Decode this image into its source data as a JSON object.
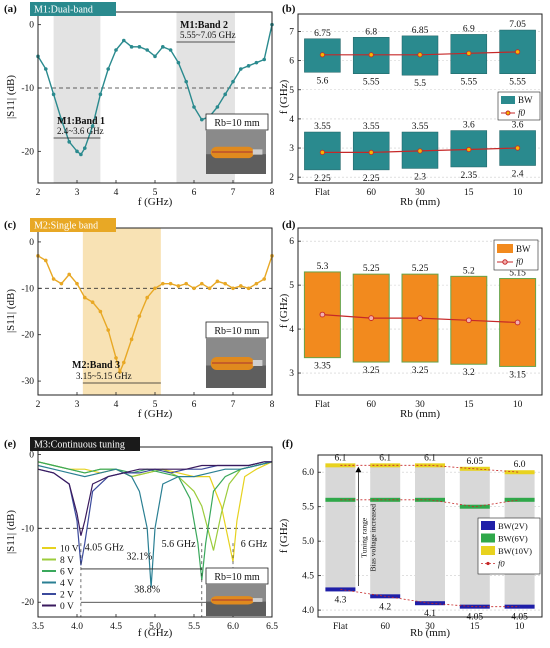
{
  "colors": {
    "teal": "#2a8a8e",
    "gold": "#e8a825",
    "orange": "#f28a1e",
    "red": "#c62828",
    "band_grey": "#e3e3e3",
    "band_gold": "#f8e2b4",
    "gray_col": "#d8d8d8"
  },
  "chart_data": [
    {
      "id": "a",
      "type": "line",
      "panel_label": "(a)",
      "badge": "M1:Dual-band",
      "xlabel": "f (GHz)",
      "ylabel": "|S11| (dB)",
      "xlim": [
        2,
        8
      ],
      "ylim": [
        -25,
        2
      ],
      "x_ticks": [
        "2",
        "3",
        "4",
        "5",
        "6",
        "7",
        "8"
      ],
      "y_ticks": [
        "0",
        "-10",
        "-20"
      ],
      "reference_line": -10,
      "bands": [
        {
          "from": 2.4,
          "to": 3.6,
          "title": "M1:Band 1",
          "range": "2.4~3.6 GHz"
        },
        {
          "from": 5.55,
          "to": 7.05,
          "title": "M1:Band 2",
          "range": "5.55~7.05 GHz"
        }
      ],
      "rb_label": "Rb=10 mm",
      "series": [
        {
          "x": [
            2.0,
            2.2,
            2.4,
            2.6,
            2.8,
            3.0,
            3.1,
            3.2,
            3.4,
            3.6,
            3.8,
            4.0,
            4.2,
            4.4,
            4.6,
            4.8,
            5.0,
            5.2,
            5.4,
            5.6,
            5.8,
            6.0,
            6.2,
            6.4,
            6.6,
            6.8,
            7.0,
            7.2,
            7.4,
            7.6,
            7.8,
            8.0
          ],
          "y": [
            -5,
            -7,
            -11,
            -15,
            -18.5,
            -20,
            -20.5,
            -19.5,
            -16,
            -11,
            -7,
            -4,
            -2.5,
            -3.5,
            -3.5,
            -4,
            -5,
            -3.5,
            -4,
            -6,
            -9,
            -13,
            -15,
            -14.5,
            -13,
            -11,
            -9,
            -7,
            -6.5,
            -6,
            -5.5,
            0
          ]
        }
      ]
    },
    {
      "id": "b",
      "type": "bar",
      "panel_label": "(b)",
      "xlabel": "Rb (mm)",
      "ylabel": "f (GHz)",
      "ylim": [
        1.8,
        7.6
      ],
      "y_ticks": [
        "2",
        "3",
        "4",
        "5",
        "6",
        "7"
      ],
      "categories": [
        "Flat",
        "60",
        "30",
        "15",
        "10"
      ],
      "legend": [
        "BW",
        "f0"
      ],
      "bands": [
        {
          "upper": [
            6.75,
            6.8,
            6.85,
            6.9,
            7.05
          ],
          "lower": [
            5.6,
            5.55,
            5.5,
            5.55,
            5.55
          ],
          "upper_labels": [
            "6.75",
            "6.8",
            "6.85",
            "6.9",
            "7.05"
          ],
          "lower_labels": [
            "5.6",
            "5.55",
            "5.5",
            "5.55",
            "5.55"
          ],
          "f0": [
            6.2,
            6.2,
            6.2,
            6.25,
            6.3
          ]
        },
        {
          "upper": [
            3.55,
            3.55,
            3.55,
            3.6,
            3.6
          ],
          "lower": [
            2.25,
            2.25,
            2.3,
            2.35,
            2.4
          ],
          "upper_labels": [
            "3.55",
            "3.55",
            "3.55",
            "3.6",
            "3.6"
          ],
          "lower_labels": [
            "2.25",
            "2.25",
            "2.3",
            "2.35",
            "2.4"
          ],
          "f0": [
            2.85,
            2.85,
            2.9,
            2.95,
            3.0
          ]
        }
      ]
    },
    {
      "id": "c",
      "type": "line",
      "panel_label": "(c)",
      "badge": "M2:Single band",
      "xlabel": "f (GHz)",
      "ylabel": "|S11| (dB)",
      "xlim": [
        2,
        8
      ],
      "ylim": [
        -33,
        3
      ],
      "x_ticks": [
        "2",
        "3",
        "4",
        "5",
        "6",
        "7",
        "8"
      ],
      "y_ticks": [
        "0",
        "-10",
        "-20",
        "-30"
      ],
      "reference_line": -10,
      "bands": [
        {
          "from": 3.15,
          "to": 5.15,
          "title": "M2:Band 3",
          "range": "3.15~5.15 GHz"
        }
      ],
      "rb_label": "Rb=10 mm",
      "series": [
        {
          "x": [
            2.0,
            2.2,
            2.4,
            2.6,
            2.8,
            3.0,
            3.2,
            3.4,
            3.6,
            3.8,
            4.0,
            4.1,
            4.2,
            4.4,
            4.6,
            4.8,
            5.0,
            5.2,
            5.4,
            5.6,
            5.8,
            6.0,
            6.2,
            6.4,
            6.6,
            6.8,
            7.0,
            7.2,
            7.4,
            7.6,
            7.8,
            8.0
          ],
          "y": [
            -3,
            -4,
            -8,
            -9,
            -7,
            -9,
            -12,
            -13,
            -15,
            -19,
            -25,
            -28,
            -26,
            -21,
            -16,
            -12,
            -10,
            -9,
            -9,
            -9.5,
            -9,
            -10,
            -9,
            -10,
            -8.5,
            -9,
            -10,
            -9.5,
            -10,
            -9,
            -8,
            -3
          ]
        }
      ]
    },
    {
      "id": "d",
      "type": "bar",
      "panel_label": "(d)",
      "xlabel": "Rb (mm)",
      "ylabel": "f (GHz)",
      "ylim": [
        2.5,
        6.3
      ],
      "y_ticks": [
        "3",
        "4",
        "5",
        "6"
      ],
      "categories": [
        "Flat",
        "60",
        "30",
        "15",
        "10"
      ],
      "legend": [
        "BW",
        "f0"
      ],
      "bands": [
        {
          "upper": [
            5.3,
            5.25,
            5.25,
            5.2,
            5.15
          ],
          "lower": [
            3.35,
            3.25,
            3.25,
            3.2,
            3.15
          ],
          "upper_labels": [
            "5.3",
            "5.25",
            "5.25",
            "5.2",
            "5.15"
          ],
          "lower_labels": [
            "3.35",
            "3.25",
            "3.25",
            "3.2",
            "3.15"
          ],
          "f0": [
            4.33,
            4.25,
            4.25,
            4.2,
            4.15
          ]
        }
      ]
    },
    {
      "id": "e",
      "type": "line",
      "panel_label": "(e)",
      "badge": "M3:Continuous tuning",
      "xlabel": "f (GHz)",
      "ylabel": "|S11| (dB)",
      "xlim": [
        3.5,
        6.5
      ],
      "ylim": [
        -22,
        1
      ],
      "x_ticks": [
        "3.5",
        "4.0",
        "4.5",
        "5.0",
        "5.5",
        "6.0",
        "6.5"
      ],
      "y_ticks": [
        "0",
        "-10",
        "-20"
      ],
      "reference_line": -10,
      "annotations": [
        "4.05 GHz",
        "5.6 GHz",
        "6 GHz",
        "32.1%",
        "38.8%"
      ],
      "rb_label": "Rb=10 mm",
      "series": [
        {
          "name": "10 V",
          "color": "#e6d21f",
          "x": [
            3.5,
            3.7,
            3.9,
            4.1,
            4.3,
            4.5,
            4.7,
            4.9,
            5.1,
            5.3,
            5.5,
            5.7,
            5.85,
            5.95,
            6.0,
            6.05,
            6.15,
            6.3,
            6.5
          ],
          "y": [
            -1,
            -1.5,
            -2,
            -2,
            -2.5,
            -2,
            -3,
            -2.5,
            -2,
            -2.5,
            -3,
            -3,
            -7,
            -12,
            -14.5,
            -9,
            -3,
            -2,
            -1
          ]
        },
        {
          "name": "8 V",
          "color": "#9ccc3c",
          "x": [
            3.5,
            3.7,
            3.9,
            4.1,
            4.3,
            4.5,
            4.7,
            4.9,
            5.1,
            5.3,
            5.5,
            5.6,
            5.75,
            5.85,
            5.95,
            6.1,
            6.3,
            6.5
          ],
          "y": [
            -1,
            -1.5,
            -2,
            -2.5,
            -2,
            -2,
            -3,
            -2.5,
            -2,
            -3,
            -5,
            -7,
            -13,
            -8,
            -4,
            -2,
            -1.5,
            -1
          ]
        },
        {
          "name": "6 V",
          "color": "#3aa85c",
          "x": [
            3.5,
            3.7,
            3.9,
            4.1,
            4.3,
            4.5,
            4.7,
            4.9,
            5.1,
            5.3,
            5.45,
            5.55,
            5.6,
            5.65,
            5.75,
            5.9,
            6.1,
            6.3,
            6.5
          ],
          "y": [
            -1,
            -1.5,
            -2,
            -2.5,
            -2,
            -2,
            -2.5,
            -2,
            -2.5,
            -3,
            -6,
            -12,
            -17,
            -12,
            -5,
            -3,
            -2,
            -1.5,
            -1
          ]
        },
        {
          "name": "4 V",
          "color": "#2a7f93",
          "x": [
            3.5,
            3.7,
            3.9,
            4.1,
            4.3,
            4.5,
            4.7,
            4.8,
            4.9,
            4.95,
            5.0,
            5.1,
            5.3,
            5.5,
            5.7,
            5.9,
            6.1,
            6.3,
            6.5
          ],
          "y": [
            -1.5,
            -2,
            -2.5,
            -3,
            -2.5,
            -2,
            -3,
            -5,
            -10,
            -18,
            -10,
            -4,
            -3,
            -3,
            -2.5,
            -2,
            -2,
            -1.5,
            -1
          ]
        },
        {
          "name": "2 V",
          "color": "#3b4a9c",
          "x": [
            3.5,
            3.7,
            3.9,
            4.0,
            4.05,
            4.1,
            4.2,
            4.4,
            4.6,
            4.8,
            5.0,
            5.2,
            5.4,
            5.6,
            5.8,
            6.0,
            6.2,
            6.4,
            6.5
          ],
          "y": [
            -2,
            -2.5,
            -4,
            -9,
            -15,
            -12,
            -5,
            -3,
            -2.5,
            -2.5,
            -2,
            -2.5,
            -2,
            -2,
            -1.5,
            -1.5,
            -1.5,
            -1,
            -1
          ]
        },
        {
          "name": "0 V",
          "color": "#3a1a5e",
          "x": [
            3.5,
            3.7,
            3.9,
            4.0,
            4.05,
            4.1,
            4.2,
            4.4,
            4.6,
            4.8,
            5.0,
            5.2,
            5.4,
            5.6,
            5.8,
            6.0,
            6.2,
            6.4,
            6.5
          ],
          "y": [
            -2,
            -2.5,
            -4,
            -8,
            -11,
            -9,
            -4,
            -3,
            -2.5,
            -2,
            -2,
            -2,
            -2,
            -1.5,
            -1.5,
            -1.5,
            -1.5,
            -1,
            -1
          ]
        }
      ]
    },
    {
      "id": "f",
      "type": "bar",
      "panel_label": "(f)",
      "xlabel": "Rb (mm)",
      "ylabel": "f (GHz)",
      "ylim": [
        3.9,
        6.25
      ],
      "y_ticks": [
        "4.0",
        "4.5",
        "5.0",
        "5.5",
        "6.0"
      ],
      "categories": [
        "Flat",
        "60",
        "30",
        "15",
        "10"
      ],
      "legend": [
        "BW(2V)",
        "BW(6V)",
        "BW(10V)",
        "f0"
      ],
      "legend_colors": [
        "#1f1fa8",
        "#2fa84a",
        "#e8d21f",
        "#c62828"
      ],
      "arrow_text": [
        "Tuning range",
        "Bias voltage increased"
      ],
      "top_values": [
        6.1,
        6.1,
        6.1,
        6.05,
        6.0
      ],
      "mid_values": [
        5.6,
        5.6,
        5.6,
        5.5,
        5.6
      ],
      "bottom_values": [
        4.3,
        4.2,
        4.1,
        4.05,
        4.05
      ],
      "top_labels": [
        "6.1",
        "6.1",
        "6.1",
        "6.05",
        "6.0"
      ],
      "bottom_labels": [
        "4.3",
        "4.2",
        "4.1",
        "4.05",
        "4.05"
      ]
    }
  ]
}
